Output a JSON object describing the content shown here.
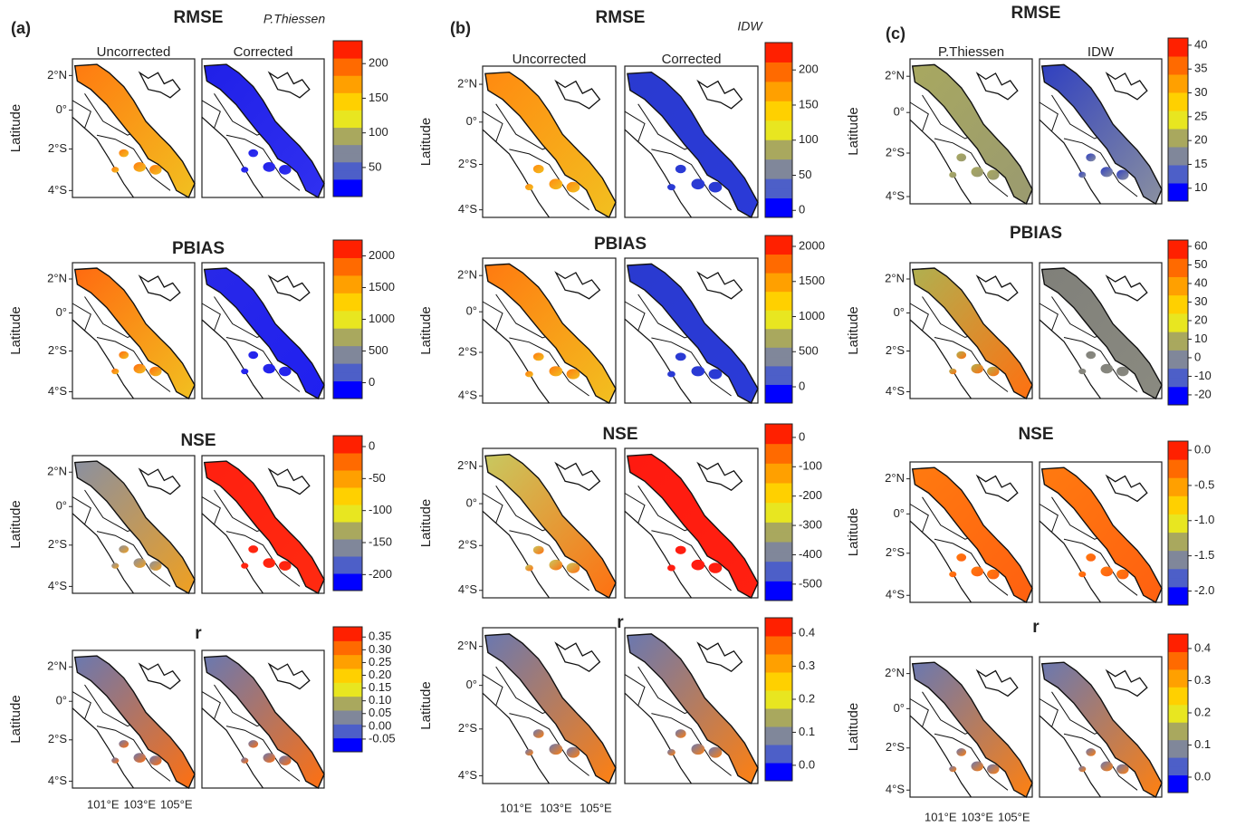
{
  "latitude_label": "Latitude",
  "lat_ticks": [
    "2°N",
    "0°",
    "2°S",
    "4°S"
  ],
  "lon_ticks": [
    "101°E",
    "103°E",
    "105°E"
  ],
  "palette": [
    "#0000ff",
    "#4d5fc8",
    "#80879a",
    "#a9a85e",
    "#e8e620",
    "#ffd000",
    "#ffa000",
    "#ff6a00",
    "#ff2000"
  ],
  "columns": [
    {
      "label": "(a)",
      "method": "P.Thiessen",
      "map_titles": [
        "Uncorrected",
        "Corrected"
      ],
      "rows": [
        {
          "title": "RMSE",
          "lim": [
            8,
            233
          ],
          "ticks": [
            50,
            100,
            150,
            200
          ]
        },
        {
          "title": "PBIAS",
          "lim": [
            -250,
            2250
          ],
          "ticks": [
            0,
            500,
            1000,
            1500,
            2000
          ]
        },
        {
          "title": "NSE",
          "lim": [
            -225,
            17
          ],
          "ticks": [
            -200,
            -150,
            -100,
            -50,
            0
          ]
        },
        {
          "title": "r",
          "lim": [
            -0.1,
            0.39
          ],
          "ticks": [
            -0.05,
            {
              "value": 0,
              "label": "0.00"
            },
            0.05,
            {
              "value": 0.1,
              "label": "0.10"
            },
            0.15,
            {
              "value": 0.2,
              "label": "0.20"
            },
            0.25,
            {
              "value": 0.3,
              "label": "0.30"
            },
            0.35
          ]
        }
      ]
    },
    {
      "label": "(b)",
      "method": "IDW",
      "map_titles": [
        "Uncorrected",
        "Corrected"
      ],
      "rows": [
        {
          "title": "RMSE",
          "lim": [
            -10,
            239
          ],
          "ticks": [
            0,
            50,
            100,
            150,
            200
          ]
        },
        {
          "title": "PBIAS",
          "lim": [
            -232,
            2155
          ],
          "ticks": [
            0,
            500,
            1000,
            1500,
            2000
          ]
        },
        {
          "title": "NSE",
          "lim": [
            -556,
            46
          ],
          "ticks": [
            -500,
            -400,
            -300,
            -200,
            -100,
            0
          ]
        },
        {
          "title": "r",
          "lim": [
            -0.047,
            0.447
          ],
          "ticks": [
            {
              "value": 0,
              "label": "0.0"
            },
            0.1,
            0.2,
            0.3,
            0.4
          ]
        }
      ]
    },
    {
      "label": "(c)",
      "map_titles": [
        "P.Thiessen",
        "IDW"
      ],
      "rows": [
        {
          "title": "RMSE",
          "lim": [
            7.3,
            41.5
          ],
          "ticks": [
            10,
            15,
            20,
            25,
            30,
            35,
            40
          ]
        },
        {
          "title": "PBIAS",
          "lim": [
            -25.4,
            63.4
          ],
          "ticks": [
            -20,
            -10,
            0,
            10,
            20,
            30,
            40,
            50,
            60
          ]
        },
        {
          "title": "NSE",
          "lim": [
            -2.2,
            0.13
          ],
          "ticks": [
            {
              "value": -2,
              "label": "-2.0"
            },
            -1.5,
            {
              "value": -1,
              "label": "-1.0"
            },
            -0.5,
            {
              "value": 0,
              "label": "0.0"
            }
          ]
        },
        {
          "title": "r",
          "lim": [
            -0.048,
            0.445
          ],
          "ticks": [
            {
              "value": 0,
              "label": "0.0"
            },
            0.1,
            0.2,
            0.3,
            0.4
          ]
        }
      ]
    }
  ]
}
